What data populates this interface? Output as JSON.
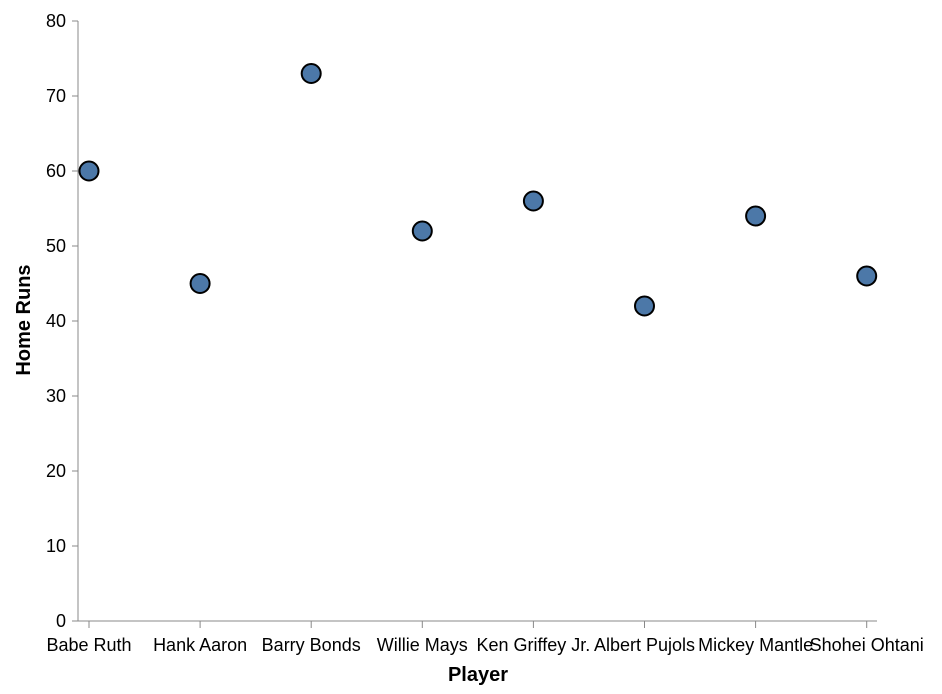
{
  "chart_data": {
    "type": "scatter",
    "categories": [
      "Babe Ruth",
      "Hank Aaron",
      "Barry Bonds",
      "Willie Mays",
      "Ken Griffey Jr.",
      "Albert Pujols",
      "Mickey Mantle",
      "Shohei Ohtani"
    ],
    "values": [
      60,
      45,
      73,
      52,
      56,
      42,
      54,
      46
    ],
    "xlabel": "Player",
    "ylabel": "Home Runs",
    "ylim": [
      0,
      80
    ],
    "yticks": [
      0,
      10,
      20,
      30,
      40,
      50,
      60,
      70,
      80
    ],
    "grid": false,
    "point_color": "#4c78a8"
  }
}
